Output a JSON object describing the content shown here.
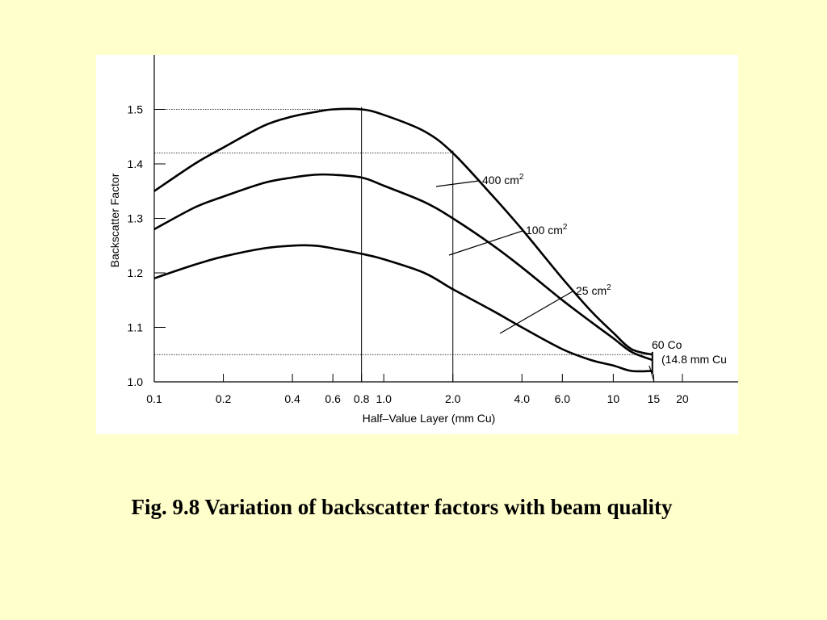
{
  "caption": "Fig. 9.8  Variation of backscatter factors with beam quality",
  "colors": {
    "background": "#FFFFCC",
    "panel": "#FFFFFF",
    "ink": "#000000"
  },
  "chart_data": {
    "type": "line",
    "xlabel": "Half–Value Layer (mm Cu)",
    "ylabel": "Backscatter Factor",
    "xscale": "log",
    "xlim": [
      0.1,
      35
    ],
    "ylim": [
      1.0,
      1.6
    ],
    "xticks": [
      {
        "value": 0.1,
        "label": "0.1"
      },
      {
        "value": 0.2,
        "label": "0.2"
      },
      {
        "value": 0.4,
        "label": "0.4"
      },
      {
        "value": 0.6,
        "label": "0.6"
      },
      {
        "value": 0.8,
        "label": "0.8"
      },
      {
        "value": 1.0,
        "label": "1.0"
      },
      {
        "value": 2.0,
        "label": "2.0"
      },
      {
        "value": 4.0,
        "label": "4.0"
      },
      {
        "value": 6.0,
        "label": "6.0"
      },
      {
        "value": 10,
        "label": "10"
      },
      {
        "value": 15,
        "label": "15"
      },
      {
        "value": 20,
        "label": "20"
      }
    ],
    "yticks": [
      {
        "value": 1.0,
        "label": "1.0"
      },
      {
        "value": 1.1,
        "label": "1.1"
      },
      {
        "value": 1.2,
        "label": "1.2"
      },
      {
        "value": 1.3,
        "label": "1.3"
      },
      {
        "value": 1.4,
        "label": "1.4"
      },
      {
        "value": 1.5,
        "label": "1.5"
      }
    ],
    "grid": false,
    "series": [
      {
        "name": "400 cm",
        "sup": "2",
        "x": [
          0.1,
          0.15,
          0.2,
          0.3,
          0.4,
          0.5,
          0.6,
          0.8,
          1.0,
          1.5,
          2.0,
          3.0,
          4.0,
          6.0,
          8.0,
          10,
          12,
          14.8
        ],
        "y": [
          1.35,
          1.4,
          1.43,
          1.47,
          1.487,
          1.495,
          1.5,
          1.5,
          1.49,
          1.46,
          1.42,
          1.34,
          1.28,
          1.19,
          1.13,
          1.09,
          1.06,
          1.05
        ]
      },
      {
        "name": "100 cm",
        "sup": "2",
        "x": [
          0.1,
          0.15,
          0.2,
          0.3,
          0.4,
          0.5,
          0.6,
          0.8,
          1.0,
          1.5,
          2.0,
          3.0,
          4.0,
          6.0,
          8.0,
          10,
          12,
          14.8
        ],
        "y": [
          1.28,
          1.32,
          1.34,
          1.365,
          1.375,
          1.38,
          1.38,
          1.375,
          1.36,
          1.33,
          1.3,
          1.25,
          1.21,
          1.15,
          1.11,
          1.08,
          1.055,
          1.04
        ]
      },
      {
        "name": "25 cm",
        "sup": "2",
        "x": [
          0.1,
          0.15,
          0.2,
          0.3,
          0.4,
          0.5,
          0.6,
          0.8,
          1.0,
          1.5,
          2.0,
          3.0,
          4.0,
          6.0,
          8.0,
          10,
          12,
          14.8
        ],
        "y": [
          1.19,
          1.215,
          1.23,
          1.245,
          1.25,
          1.25,
          1.245,
          1.235,
          1.225,
          1.2,
          1.17,
          1.13,
          1.1,
          1.06,
          1.04,
          1.03,
          1.02,
          1.02
        ]
      }
    ],
    "annotations": [
      {
        "text": "60 Co",
        "x": 14.8,
        "y": 1.02
      },
      {
        "text": "(14.8 mm Cu",
        "x": 14.8,
        "y": 1.02
      }
    ],
    "reference_lines": [
      {
        "type": "vertical",
        "x": 0.8,
        "y_to": 1.5
      },
      {
        "type": "vertical",
        "x": 2.0,
        "y_to": 1.42
      },
      {
        "type": "horizontal",
        "y": 1.5,
        "x_to": 0.8
      },
      {
        "type": "horizontal",
        "y": 1.42,
        "x_to": 2.0
      },
      {
        "type": "horizontal",
        "y": 1.05,
        "x_to": 14.8
      }
    ]
  }
}
